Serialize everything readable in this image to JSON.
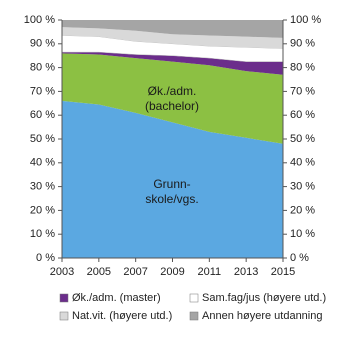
{
  "chart_data": {
    "type": "stacked-area",
    "x": [
      2003,
      2005,
      2007,
      2009,
      2011,
      2013,
      2015
    ],
    "xlim": [
      2003,
      2015
    ],
    "xticks": [
      2003,
      2005,
      2007,
      2009,
      2011,
      2013,
      2015
    ],
    "ylim": [
      0,
      100
    ],
    "yticks": [
      {
        "value": 0,
        "label": "0 %"
      },
      {
        "value": 10,
        "label": "10 %"
      },
      {
        "value": 20,
        "label": "20 %"
      },
      {
        "value": 30,
        "label": "30 %"
      },
      {
        "value": 40,
        "label": "40 %"
      },
      {
        "value": 50,
        "label": "50 %"
      },
      {
        "value": 60,
        "label": "60 %"
      },
      {
        "value": 70,
        "label": "70 %"
      },
      {
        "value": 80,
        "label": "80 %"
      },
      {
        "value": 90,
        "label": "90 %"
      },
      {
        "value": 100,
        "label": "100 %"
      }
    ],
    "y2lim": [
      0,
      100
    ],
    "y2ticks": [
      {
        "value": 0,
        "label": "0 %"
      },
      {
        "value": 10,
        "label": "10 %"
      },
      {
        "value": 20,
        "label": "20 %"
      },
      {
        "value": 30,
        "label": "30 %"
      },
      {
        "value": 40,
        "label": "40 %"
      },
      {
        "value": 50,
        "label": "50 %"
      },
      {
        "value": 60,
        "label": "60 %"
      },
      {
        "value": 70,
        "label": "70 %"
      },
      {
        "value": 80,
        "label": "80 %"
      },
      {
        "value": 90,
        "label": "90 %"
      },
      {
        "value": 100,
        "label": "100 %"
      }
    ],
    "series": [
      {
        "color": "#5ba8e1",
        "values": [
          66,
          64.5,
          61,
          57,
          53,
          50.5,
          48
        ]
      },
      {
        "color": "#8cc043",
        "values": [
          20,
          21,
          23,
          25.5,
          28,
          28,
          29
        ]
      },
      {
        "name": "Øk./adm. (master)",
        "color": "#6b2d8b",
        "values": [
          0.5,
          1,
          1.5,
          2.5,
          3,
          4,
          5.5
        ]
      },
      {
        "name": "Sam.fag/jus (høyere utd.)",
        "color": "#ffffff",
        "values": [
          7,
          6.5,
          5.5,
          5,
          5,
          6,
          5.5
        ]
      },
      {
        "name": "Nat.vit. (høyere utd.)",
        "color": "#d9d9d9",
        "values": [
          3.5,
          3.5,
          4.5,
          4,
          4.5,
          4.5,
          4.5
        ]
      },
      {
        "name": "Annen høyere utdanning",
        "color": "#a5a5a5",
        "values": [
          3,
          3.5,
          4.5,
          6,
          6.5,
          7,
          7.5
        ]
      }
    ],
    "annotations": [
      {
        "lines": [
          "Øk./adm.",
          "(bachelor)"
        ]
      },
      {
        "lines": [
          "Grunn-",
          "skole/vgs."
        ]
      }
    ]
  }
}
